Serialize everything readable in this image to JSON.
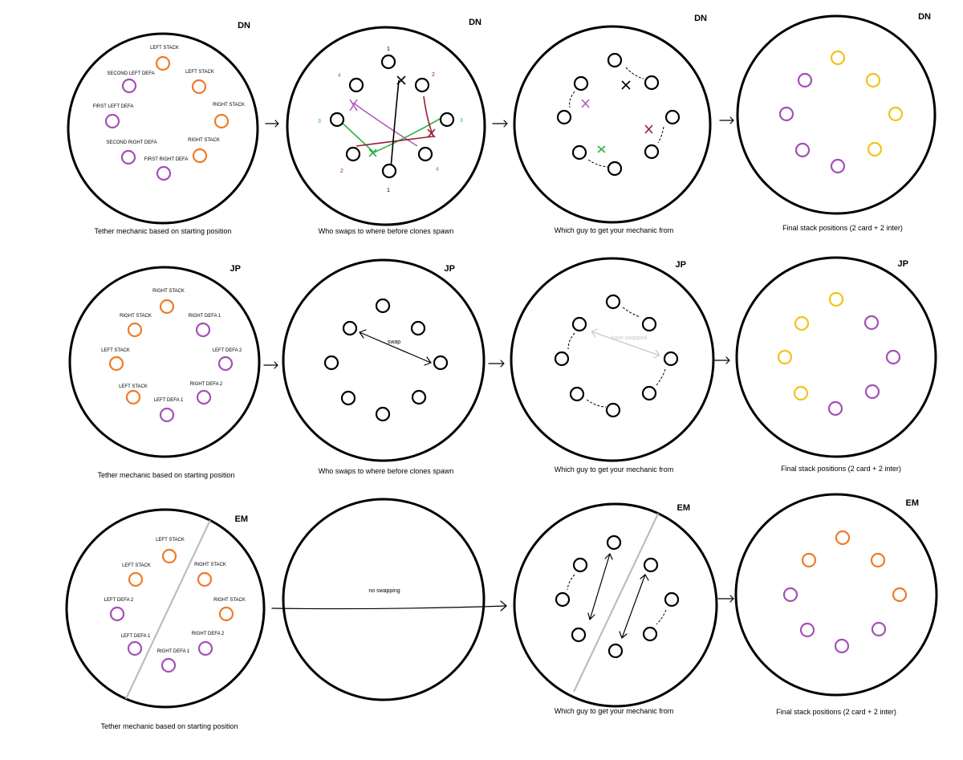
{
  "colors": {
    "outline": "#000000",
    "stack": "#f07a2a",
    "defa": "#a350b5",
    "inter": "#f2c318",
    "purple_line": "#b05cc4",
    "green_line": "#2eb34a",
    "red_line": "#9b1b30",
    "divider": "#bdbdbd",
    "muted_text": "#c8c8c8"
  },
  "rows": [
    {
      "tag": "DN",
      "panels": [
        {
          "caption": "Tether mechanic based on starting position",
          "labels": [
            "LEFT STACK",
            "LEFT STACK",
            "SECOND LEFT DEFA",
            "RIGHT STACK",
            "FIRST LEFT DEFA",
            "RIGHT STACK",
            "SECOND RIGHT DEFA",
            "FIRST RIGHT DEFA"
          ]
        },
        {
          "caption": "Who swaps to where before clones spawn",
          "markers": [
            "1",
            "2",
            "4",
            "3",
            "3",
            "2",
            "4",
            "1"
          ]
        },
        {
          "caption": "Which guy to get your mechanic from"
        },
        {
          "caption": "Final stack positions (2 card + 2 inter)"
        }
      ]
    },
    {
      "tag": "JP",
      "panels": [
        {
          "caption": "Tether mechanic based on starting position",
          "labels": [
            "RIGHT STACK",
            "RIGHT STACK",
            "RIGHT DEFA 1",
            "LEFT STACK",
            "LEFT DEFA 2",
            "LEFT STACK",
            "RIGHT DEFA 2",
            "LEFT DEFA 1"
          ]
        },
        {
          "caption": "Who swaps to where before clones spawn",
          "note": "swap"
        },
        {
          "caption": "Which guy to get your mechanic from",
          "note": "have swapped"
        },
        {
          "caption": "Final stack positions (2 card + 2 inter)"
        }
      ]
    },
    {
      "tag": "EM",
      "panels": [
        {
          "caption": "Tether mechanic based on starting position",
          "labels": [
            "LEFT STACK",
            "LEFT STACK",
            "RIGHT STACK",
            "LEFT DEFA 2",
            "RIGHT STACK",
            "LEFT DEFA 1",
            "RIGHT DEFA 2",
            "RIGHT DEFA 1"
          ]
        },
        {
          "note": "no swapping"
        },
        {
          "caption": "Which guy to get your mechanic from"
        },
        {
          "caption": "Final stack positions (2 card + 2 inter)"
        }
      ]
    }
  ]
}
